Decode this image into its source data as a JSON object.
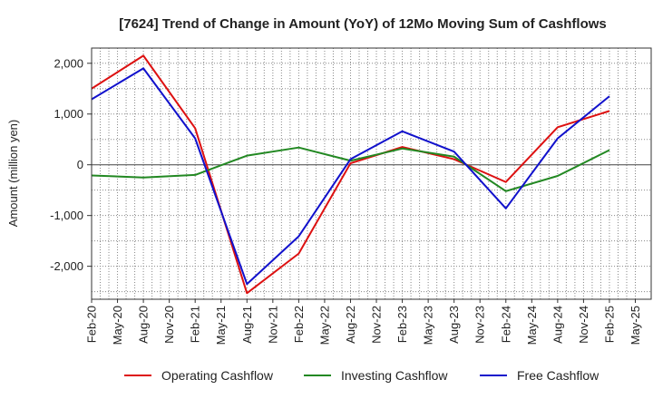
{
  "chart_data": {
    "type": "line",
    "title": "[7624]  Trend of Change in Amount (YoY) of 12Mo Moving Sum of Cashflows",
    "xlabel": "",
    "ylabel": "Amount (million yen)",
    "categories": [
      "Feb-20",
      "Mar-20",
      "Apr-20",
      "May-20",
      "Jun-20",
      "Jul-20",
      "Aug-20",
      "Sep-20",
      "Oct-20",
      "Nov-20",
      "Dec-20",
      "Jan-21",
      "Feb-21",
      "Mar-21",
      "Apr-21",
      "May-21",
      "Jun-21",
      "Jul-21",
      "Aug-21",
      "Sep-21",
      "Oct-21",
      "Nov-21",
      "Dec-21",
      "Jan-22",
      "Feb-22",
      "Mar-22",
      "Apr-22",
      "May-22",
      "Jun-22",
      "Jul-22",
      "Aug-22",
      "Sep-22",
      "Oct-22",
      "Nov-22",
      "Dec-22",
      "Jan-23",
      "Feb-23",
      "Mar-23",
      "Apr-23",
      "May-23",
      "Jun-23",
      "Jul-23",
      "Aug-23",
      "Sep-23",
      "Oct-23",
      "Nov-23",
      "Dec-23",
      "Jan-24",
      "Feb-24",
      "Mar-24",
      "Apr-24",
      "May-24",
      "Jun-24",
      "Jul-24",
      "Aug-24",
      "Sep-24",
      "Oct-24",
      "Nov-24",
      "Dec-24",
      "Jan-25",
      "Feb-25",
      "Mar-25",
      "Apr-25",
      "May-25"
    ],
    "x_tick_labels": [
      "Feb-20",
      "May-20",
      "Aug-20",
      "Nov-20",
      "Feb-21",
      "May-21",
      "Aug-21",
      "Nov-21",
      "Feb-22",
      "May-22",
      "Aug-22",
      "Nov-22",
      "Feb-23",
      "May-23",
      "Aug-23",
      "Nov-23",
      "Feb-24",
      "May-24",
      "Aug-24",
      "Nov-24",
      "Feb-25",
      "May-25"
    ],
    "y_ticks": [
      2000,
      1000,
      0,
      -1000,
      -2000
    ],
    "y_tick_labels": [
      "2,000",
      "1,000",
      "0",
      "-1,000",
      "-2,000"
    ],
    "ylim": [
      -2650,
      2300
    ],
    "grid": true,
    "series": [
      {
        "name": "Operating Cashflow",
        "color": "#dd1111",
        "points": [
          {
            "x": "Feb-20",
            "y": 1500
          },
          {
            "x": "Aug-20",
            "y": 2150
          },
          {
            "x": "Feb-21",
            "y": 720
          },
          {
            "x": "Aug-21",
            "y": -2530
          },
          {
            "x": "Feb-22",
            "y": -1750
          },
          {
            "x": "Aug-22",
            "y": 30
          },
          {
            "x": "Feb-23",
            "y": 350
          },
          {
            "x": "Aug-23",
            "y": 110
          },
          {
            "x": "Feb-24",
            "y": -340
          },
          {
            "x": "Aug-24",
            "y": 740
          },
          {
            "x": "Feb-25",
            "y": 1060
          }
        ]
      },
      {
        "name": "Investing Cashflow",
        "color": "#228822",
        "points": [
          {
            "x": "Feb-20",
            "y": -210
          },
          {
            "x": "Aug-20",
            "y": -250
          },
          {
            "x": "Feb-21",
            "y": -200
          },
          {
            "x": "Aug-21",
            "y": 180
          },
          {
            "x": "Feb-22",
            "y": 340
          },
          {
            "x": "Aug-22",
            "y": 80
          },
          {
            "x": "Feb-23",
            "y": 320
          },
          {
            "x": "Aug-23",
            "y": 160
          },
          {
            "x": "Feb-24",
            "y": -520
          },
          {
            "x": "Aug-24",
            "y": -220
          },
          {
            "x": "Feb-25",
            "y": 290
          }
        ]
      },
      {
        "name": "Free Cashflow",
        "color": "#1111cc",
        "points": [
          {
            "x": "Feb-20",
            "y": 1290
          },
          {
            "x": "Aug-20",
            "y": 1900
          },
          {
            "x": "Feb-21",
            "y": 520
          },
          {
            "x": "Aug-21",
            "y": -2350
          },
          {
            "x": "Feb-22",
            "y": -1410
          },
          {
            "x": "Aug-22",
            "y": 110
          },
          {
            "x": "Feb-23",
            "y": 660
          },
          {
            "x": "Aug-23",
            "y": 260
          },
          {
            "x": "Feb-24",
            "y": -860
          },
          {
            "x": "Aug-24",
            "y": 520
          },
          {
            "x": "Feb-25",
            "y": 1350
          }
        ]
      }
    ],
    "legend": {
      "placement": "bottom-center",
      "entries": [
        "Operating Cashflow",
        "Investing Cashflow",
        "Free Cashflow"
      ]
    }
  }
}
